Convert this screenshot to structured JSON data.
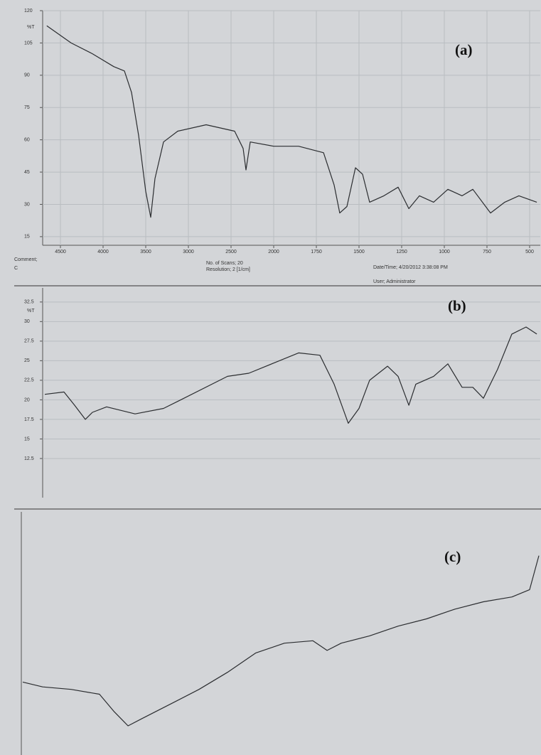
{
  "chart_data": [
    {
      "type": "line",
      "title": "(a)",
      "ylabel": "%T",
      "x": [
        4660,
        4375,
        4125,
        3875,
        3750,
        3667,
        3583,
        3500,
        3442,
        3392,
        3292,
        3125,
        2792,
        2458,
        2358,
        2325,
        2275,
        2000,
        1854,
        1708,
        1646,
        1613,
        1571,
        1521,
        1479,
        1438,
        1354,
        1271,
        1208,
        1146,
        1063,
        979,
        896,
        833,
        729,
        646,
        563,
        458
      ],
      "values": [
        113,
        105,
        100,
        94,
        92,
        82,
        62,
        36,
        24,
        42,
        59,
        64,
        67,
        64,
        56,
        46,
        59,
        57,
        57,
        54,
        39,
        26,
        29,
        47,
        44,
        31,
        34,
        38,
        28,
        34,
        31,
        37,
        34,
        37,
        26,
        31,
        34,
        31
      ],
      "xticks": [
        4500,
        4000,
        3500,
        3000,
        2500,
        2000,
        1750,
        1500,
        1250,
        1000,
        750,
        500
      ],
      "ylim": [
        11,
        120
      ],
      "yticks": [
        120,
        105,
        90,
        75,
        60,
        45,
        30,
        15
      ],
      "grid": true,
      "color": "#2b2d30",
      "annotations": [
        "Comment;",
        "C",
        "No. of Scans; 20",
        "Resolution; 2 [1/cm]",
        "Date/Time; 4/20/2012 3:38:08 PM",
        "User; Administrator"
      ]
    },
    {
      "type": "line",
      "title": "(b)",
      "ylabel": "%T",
      "x": [
        4683,
        4458,
        4333,
        4208,
        4125,
        3958,
        3625,
        3292,
        3125,
        2542,
        2292,
        1854,
        1729,
        1646,
        1563,
        1500,
        1438,
        1333,
        1271,
        1208,
        1167,
        1063,
        979,
        896,
        833,
        771,
        688,
        604,
        521,
        458
      ],
      "values": [
        20.7,
        21.0,
        19.3,
        17.5,
        18.4,
        19.1,
        18.2,
        18.9,
        19.8,
        23.0,
        23.4,
        26.0,
        25.7,
        22.0,
        17.0,
        18.9,
        22.5,
        24.3,
        23.0,
        19.3,
        22.0,
        23.0,
        24.6,
        21.6,
        21.6,
        20.2,
        23.9,
        28.4,
        29.3,
        28.4
      ],
      "ylim": [
        7.5,
        34.3
      ],
      "yticks": [
        32.5,
        30,
        27.5,
        25,
        22.5,
        20,
        17.5,
        15,
        12.5
      ],
      "grid": true,
      "color": "#2b2d30"
    },
    {
      "type": "line",
      "title": "(c)",
      "x": [
        3990,
        3852,
        3655,
        3458,
        3359,
        3260,
        3162,
        2964,
        2767,
        2570,
        2373,
        2175,
        1978,
        1879,
        1781,
        1584,
        1386,
        1189,
        992,
        795,
        597,
        474,
        410
      ],
      "values": [
        30,
        28,
        27,
        25,
        18,
        12,
        15,
        21,
        27,
        34,
        42,
        46,
        47,
        43,
        46,
        49,
        53,
        56,
        60,
        63,
        65,
        68,
        82
      ],
      "xlim": [
        4000,
        400
      ],
      "ylim": [
        0,
        100
      ],
      "color": "#2b2d30"
    }
  ]
}
